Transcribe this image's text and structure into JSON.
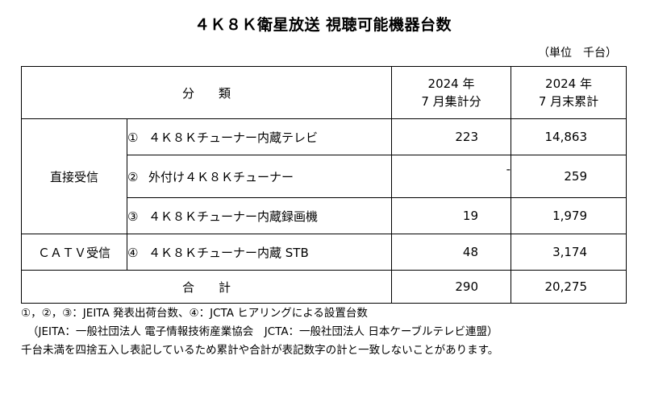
{
  "title": "４Ｋ８Ｋ衛星放送 視聴可能機器台数",
  "unit": "（単位　千台）",
  "table": {
    "header": {
      "category": "分　　類",
      "col_month_line1": "2024 年",
      "col_month_line2": "7 月集計分",
      "col_cum_line1": "2024 年",
      "col_cum_line2": "7 月末累計"
    },
    "groups": {
      "direct": "直接受信",
      "catv": "ＣＡＴＶ受信"
    },
    "rows": [
      {
        "index": "①",
        "label": "４Ｋ８Ｋチューナー内蔵テレビ",
        "month": "223",
        "cumulative": "14,863"
      },
      {
        "index": "②",
        "label": "外付け４Ｋ８Ｋチューナー",
        "month": "-",
        "cumulative": "259"
      },
      {
        "index": "③",
        "label": "４Ｋ８Ｋチューナー内蔵録画機",
        "month": "19",
        "cumulative": "1,979"
      },
      {
        "index": "④",
        "label": "４Ｋ８Ｋチューナー内蔵 STB",
        "month": "48",
        "cumulative": "3,174"
      }
    ],
    "total": {
      "label": "合　　計",
      "month": "290",
      "cumulative": "20,275"
    }
  },
  "notes": [
    "①，②，③：JEITA 発表出荷台数、④：JCTA ヒアリングによる設置台数",
    "（JEITA：一般社団法人 電子情報技術産業協会　JCTA：一般社団法人 日本ケーブルテレビ連盟）",
    "千台未満を四捨五入し表記しているため累計や合計が表記数字の計と一致しないことがあります。"
  ]
}
